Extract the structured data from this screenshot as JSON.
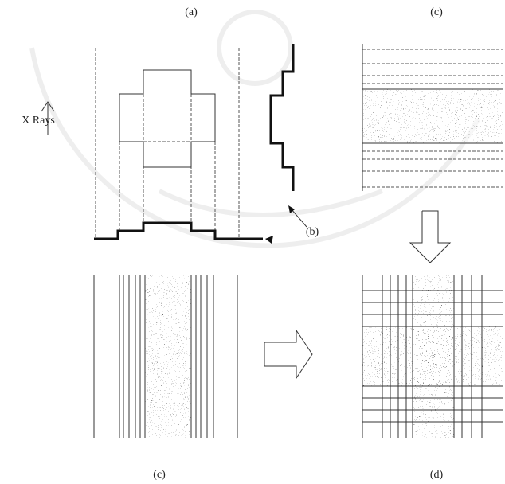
{
  "figure": {
    "label_a": "(a)",
    "label_c_top": "(c)",
    "x_rays": "X Rays",
    "label_b": "(b)",
    "label_c_bottom": "(c)",
    "label_d": "(d)"
  }
}
